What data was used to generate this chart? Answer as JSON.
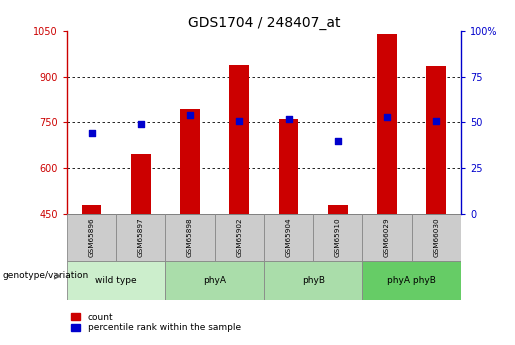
{
  "title": "GDS1704 / 248407_at",
  "samples": [
    "GSM65896",
    "GSM65897",
    "GSM65898",
    "GSM65902",
    "GSM65904",
    "GSM65910",
    "GSM66029",
    "GSM66030"
  ],
  "counts": [
    480,
    645,
    795,
    940,
    760,
    480,
    1040,
    935
  ],
  "percentile_ranks": [
    44,
    49,
    54,
    51,
    52,
    40,
    53,
    51
  ],
  "ymin": 450,
  "ymax": 1050,
  "yticks": [
    450,
    600,
    750,
    900,
    1050
  ],
  "y2min": 0,
  "y2max": 100,
  "y2ticks": [
    0,
    25,
    50,
    75,
    100
  ],
  "bar_color": "#cc0000",
  "dot_color": "#0000cc",
  "bar_width": 0.4,
  "legend_count": "count",
  "legend_pct": "percentile rank within the sample",
  "genotype_label": "genotype/variation",
  "sample_box_color": "#cccccc",
  "title_fontsize": 10,
  "tick_fontsize": 7,
  "groups": [
    {
      "label": "wild type",
      "start": 0,
      "end": 2,
      "color": "#cceecc"
    },
    {
      "label": "phyA",
      "start": 2,
      "end": 4,
      "color": "#aaddaa"
    },
    {
      "label": "phyB",
      "start": 4,
      "end": 6,
      "color": "#aaddaa"
    },
    {
      "label": "phyA phyB",
      "start": 6,
      "end": 8,
      "color": "#66cc66"
    }
  ]
}
